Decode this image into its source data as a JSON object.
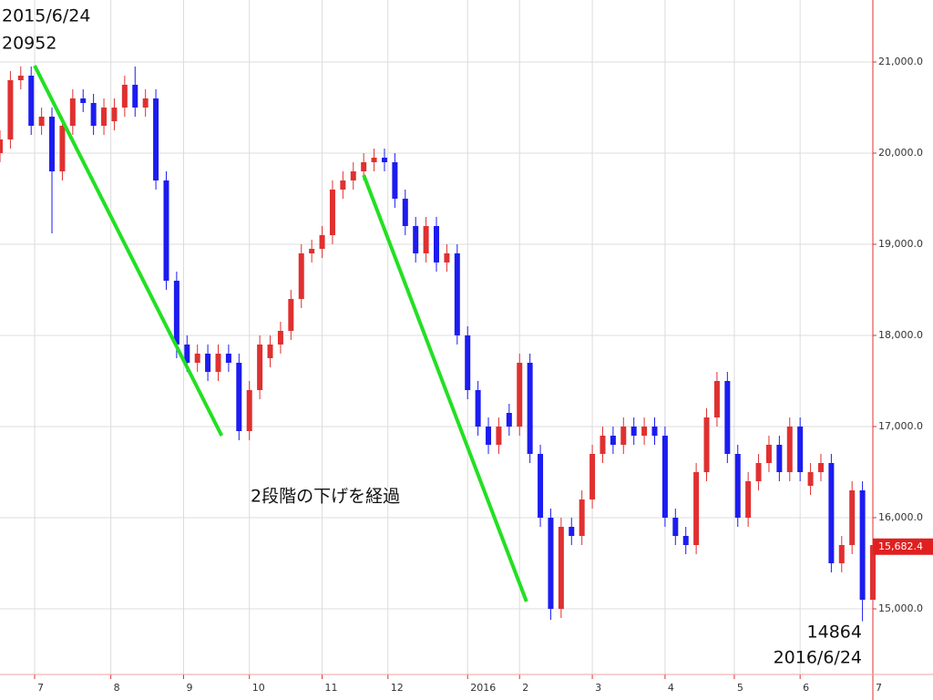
{
  "chart_data": {
    "type": "candlestick",
    "annotations": [
      "2015/6/24",
      "20952",
      "14864",
      "2016/6/24",
      "2段階の下げを経過"
    ],
    "up_color": "#e03030",
    "down_color": "#1c1cf0",
    "grid": true,
    "xlim": [
      0,
      252
    ],
    "ylim": [
      14280,
      21680
    ],
    "xticks": [
      {
        "value": 10,
        "label": "7"
      },
      {
        "value": 32,
        "label": "8"
      },
      {
        "value": 53,
        "label": "9"
      },
      {
        "value": 72,
        "label": "10"
      },
      {
        "value": 93,
        "label": "11"
      },
      {
        "value": 112,
        "label": "12"
      },
      {
        "value": 135,
        "label": "2016"
      },
      {
        "value": 150,
        "label": "2"
      },
      {
        "value": 171,
        "label": "3"
      },
      {
        "value": 192,
        "label": "4"
      },
      {
        "value": 212,
        "label": "5"
      },
      {
        "value": 231,
        "label": "6"
      },
      {
        "value": 252,
        "label": "7"
      }
    ],
    "yticks": [
      {
        "value": 15000,
        "label": "15,000.0"
      },
      {
        "value": 16000,
        "label": "16,000.0"
      },
      {
        "value": 17000,
        "label": "17,000.0"
      },
      {
        "value": 18000,
        "label": "18,000.0"
      },
      {
        "value": 19000,
        "label": "19,000.0"
      },
      {
        "value": 20000,
        "label": "20,000.0"
      },
      {
        "value": 21000,
        "label": "21,000.0"
      }
    ],
    "last_price": {
      "value": 15682.4,
      "label": "15,682.4"
    },
    "trend_lines": [
      {
        "color": "#22e022",
        "x": [
          10,
          64
        ],
        "y": [
          20960,
          16900
        ]
      },
      {
        "color": "#22e022",
        "x": [
          105,
          152
        ],
        "y": [
          19760,
          15080
        ]
      }
    ],
    "x": [
      0,
      3,
      6,
      9,
      12,
      15,
      18,
      21,
      24,
      27,
      30,
      33,
      36,
      39,
      42,
      45,
      48,
      51,
      54,
      57,
      60,
      63,
      66,
      69,
      72,
      75,
      78,
      81,
      84,
      87,
      90,
      93,
      96,
      99,
      102,
      105,
      108,
      111,
      114,
      117,
      120,
      123,
      126,
      129,
      132,
      135,
      138,
      141,
      144,
      147,
      150,
      153,
      156,
      159,
      162,
      165,
      168,
      171,
      174,
      177,
      180,
      183,
      186,
      189,
      192,
      195,
      198,
      201,
      204,
      207,
      210,
      213,
      216,
      219,
      222,
      225,
      228,
      231,
      234,
      237,
      240,
      243,
      246,
      249,
      252
    ],
    "open": [
      20000,
      20150,
      20800,
      20850,
      20300,
      20400,
      19800,
      20300,
      20600,
      20550,
      20300,
      20350,
      20500,
      20750,
      20500,
      20600,
      19700,
      18600,
      17900,
      17700,
      17800,
      17600,
      17800,
      17700,
      16950,
      17400,
      17750,
      17900,
      18050,
      18400,
      18900,
      18950,
      19100,
      19600,
      19700,
      19800,
      19900,
      19950,
      19900,
      19500,
      19200,
      18900,
      19200,
      18800,
      18900,
      18000,
      17400,
      17000,
      16800,
      17150,
      17000,
      17700,
      16700,
      16000,
      15000,
      15900,
      15800,
      16200,
      16700,
      16900,
      16800,
      17000,
      16900,
      17000,
      16900,
      16000,
      15800,
      15700,
      16500,
      17100,
      17500,
      16700,
      16000,
      16400,
      16600,
      16800,
      16500,
      17000,
      16350,
      16500,
      16600,
      15500,
      15700,
      16300,
      15100
    ],
    "high": [
      20250,
      20900,
      20952,
      20950,
      20500,
      20500,
      20400,
      20700,
      20700,
      20650,
      20600,
      20600,
      20850,
      20950,
      20700,
      20700,
      19800,
      18700,
      18000,
      17900,
      17900,
      17900,
      17900,
      17800,
      17500,
      18000,
      18000,
      18150,
      18500,
      19000,
      19050,
      19200,
      19700,
      19800,
      19900,
      20000,
      20050,
      20050,
      20000,
      19600,
      19300,
      19300,
      19300,
      19000,
      19000,
      18100,
      17500,
      17100,
      17100,
      17250,
      17800,
      17800,
      16800,
      16100,
      16000,
      16000,
      16300,
      16800,
      17000,
      17000,
      17100,
      17100,
      17100,
      17100,
      17000,
      16100,
      15900,
      16600,
      17200,
      17600,
      17600,
      16800,
      16500,
      16700,
      16900,
      16900,
      17100,
      17100,
      16600,
      16700,
      16700,
      15800,
      16400,
      16400,
      15800
    ],
    "low": [
      19900,
      20050,
      20700,
      20200,
      20200,
      19120,
      19700,
      20200,
      20450,
      20200,
      20200,
      20250,
      20400,
      20400,
      20400,
      19600,
      18500,
      17750,
      17600,
      17600,
      17500,
      17500,
      17600,
      16850,
      16850,
      17300,
      17650,
      17800,
      17950,
      18300,
      18800,
      18850,
      19000,
      19500,
      19600,
      19700,
      19800,
      19800,
      19400,
      19100,
      18800,
      18800,
      18700,
      18700,
      17900,
      17300,
      16900,
      16700,
      16700,
      16900,
      16900,
      16600,
      15900,
      14880,
      14900,
      15700,
      15700,
      16100,
      16600,
      16700,
      16700,
      16800,
      16800,
      16800,
      15900,
      15700,
      15600,
      15600,
      16400,
      17000,
      16600,
      15900,
      15900,
      16300,
      16500,
      16400,
      16400,
      16400,
      16250,
      16400,
      15400,
      15400,
      15600,
      14864,
      15000
    ],
    "close": [
      20150,
      20800,
      20850,
      20300,
      20400,
      19800,
      20300,
      20600,
      20550,
      20300,
      20500,
      20500,
      20750,
      20500,
      20600,
      19700,
      18600,
      17900,
      17700,
      17800,
      17600,
      17800,
      17700,
      16950,
      17400,
      17900,
      17900,
      18050,
      18400,
      18900,
      18950,
      19100,
      19600,
      19700,
      19800,
      19900,
      19950,
      19900,
      19500,
      19200,
      18900,
      19200,
      18800,
      18900,
      18000,
      17400,
      17000,
      16800,
      17000,
      17000,
      17700,
      16700,
      16000,
      15000,
      15900,
      15800,
      16200,
      16700,
      16900,
      16800,
      17000,
      16900,
      17000,
      16900,
      16000,
      15800,
      15700,
      16500,
      17100,
      17500,
      16700,
      16000,
      16400,
      16600,
      16800,
      16500,
      17000,
      16500,
      16500,
      16600,
      15500,
      15700,
      16300,
      15100,
      15700
    ]
  }
}
